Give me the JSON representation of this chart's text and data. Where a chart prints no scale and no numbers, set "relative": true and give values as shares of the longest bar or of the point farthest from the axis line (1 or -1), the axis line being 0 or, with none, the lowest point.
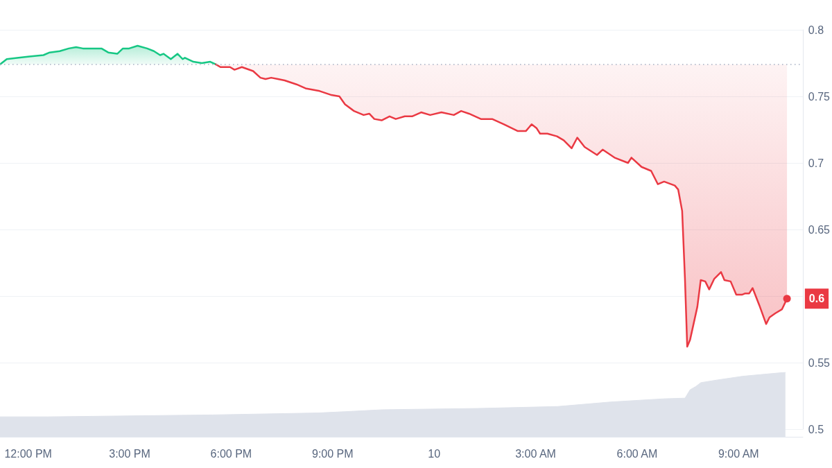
{
  "chart_data": [
    {
      "type": "area",
      "series": [
        {
          "color": "#16c784",
          "x": [
            "--01-09T11:10",
            "--01-09T11:22",
            "--01-09T11:43",
            "--01-09T12:02",
            "--01-09T12:27",
            "--01-09T12:38",
            "--01-09T12:56",
            "--01-09T13:12",
            "--01-09T13:25",
            "--01-09T13:37",
            "--01-09T13:53",
            "--01-09T14:10",
            "--01-09T14:22",
            "--01-09T14:38",
            "--01-09T14:48",
            "--01-09T14:59",
            "--01-09T15:14",
            "--01-09T15:31",
            "--01-09T15:43",
            "--01-09T15:54",
            "--01-09T16:00",
            "--01-09T16:13",
            "--01-09T16:25",
            "--01-09T16:34",
            "--01-09T16:38",
            "--01-09T16:53",
            "--01-09T17:08",
            "--01-09T17:23",
            "--01-09T17:33"
          ],
          "values": [
            0.774,
            0.778,
            0.779,
            0.78,
            0.781,
            0.783,
            0.784,
            0.786,
            0.787,
            0.786,
            0.786,
            0.786,
            0.783,
            0.782,
            0.786,
            0.786,
            0.788,
            0.786,
            0.784,
            0.781,
            0.782,
            0.778,
            0.782,
            0.778,
            0.779,
            0.776,
            0.775,
            0.776,
            0.774
          ]
        },
        {
          "type": "line",
          "color": "#ea3943",
          "x": [
            "--01-09T17:33",
            "--01-09T17:41",
            "--01-09T17:58",
            "--01-09T18:06",
            "--01-09T18:19",
            "--01-09T18:39",
            "--01-09T18:52",
            "--01-09T19:01",
            "--01-09T19:11",
            "--01-09T19:23",
            "--01-09T19:35",
            "--01-09T19:56",
            "--01-09T20:12",
            "--01-09T20:37",
            "--01-09T20:58",
            "--01-09T21:12",
            "--01-09T21:22",
            "--01-09T21:38",
            "--01-09T21:55",
            "--01-09T22:05",
            "--01-09T22:14",
            "--01-09T22:27",
            "--01-09T22:41",
            "--01-09T22:52",
            "--01-09T23:08",
            "--01-09T23:21",
            "--01-09T23:37",
            "--01-09T23:53",
            "--01-10T00:13",
            "--01-10T00:35",
            "--01-10T00:48",
            "--01-10T01:02",
            "--01-10T01:23",
            "--01-10T01:43",
            "--01-10T02:04",
            "--01-10T02:28",
            "--01-10T02:43",
            "--01-10T02:53",
            "--01-10T03:02",
            "--01-10T03:08",
            "--01-10T03:21",
            "--01-10T03:38",
            "--01-10T03:50",
            "--01-10T04:04",
            "--01-10T04:14",
            "--01-10T04:27",
            "--01-10T04:49",
            "--01-10T04:59",
            "--01-10T05:20",
            "--01-10T05:44",
            "--01-10T05:50",
            "--01-10T06:08",
            "--01-10T06:25",
            "--01-10T06:37",
            "--01-10T06:48",
            "--01-10T07:07",
            "--01-10T07:13",
            "--01-10T07:20",
            "--01-10T07:25",
            "--01-10T07:29",
            "--01-10T07:34",
            "--01-10T07:47",
            "--01-10T07:53",
            "--01-10T08:01",
            "--01-10T08:08",
            "--01-10T08:17",
            "--01-10T08:29",
            "--01-10T08:35",
            "--01-10T08:46",
            "--01-10T08:56",
            "--01-10T09:06",
            "--01-10T09:12",
            "--01-10T09:19",
            "--01-10T09:25",
            "--01-10T09:37",
            "--01-10T09:49",
            "--01-10T09:55",
            "--01-10T10:05",
            "--01-10T10:17",
            "--01-10T10:26"
          ],
          "values": [
            0.774,
            0.772,
            0.772,
            0.77,
            0.772,
            0.769,
            0.764,
            0.763,
            0.764,
            0.763,
            0.762,
            0.759,
            0.756,
            0.754,
            0.751,
            0.75,
            0.744,
            0.739,
            0.736,
            0.737,
            0.733,
            0.732,
            0.735,
            0.733,
            0.735,
            0.735,
            0.738,
            0.736,
            0.738,
            0.736,
            0.739,
            0.737,
            0.733,
            0.733,
            0.729,
            0.724,
            0.724,
            0.729,
            0.726,
            0.722,
            0.722,
            0.72,
            0.717,
            0.711,
            0.719,
            0.712,
            0.706,
            0.71,
            0.704,
            0.7,
            0.704,
            0.697,
            0.694,
            0.684,
            0.686,
            0.683,
            0.68,
            0.664,
            0.613,
            0.562,
            0.567,
            0.592,
            0.612,
            0.611,
            0.605,
            0.613,
            0.618,
            0.612,
            0.611,
            0.601,
            0.601,
            0.602,
            0.602,
            0.606,
            0.593,
            0.579,
            0.584,
            0.587,
            0.59,
            0.598
          ],
          "lower": [
            0.774,
            0.772,
            0.772,
            0.77,
            0.772,
            0.769,
            0.764,
            0.763,
            0.764,
            0.763,
            0.762,
            0.759,
            0.756,
            0.754,
            0.751,
            0.75,
            0.744,
            0.739,
            0.736,
            0.737,
            0.733,
            0.732,
            0.735,
            0.733,
            0.735,
            0.735,
            0.738,
            0.736,
            0.738,
            0.736,
            0.739,
            0.737,
            0.733,
            0.733,
            0.729,
            0.724,
            0.724,
            0.729,
            0.726,
            0.722,
            0.722,
            0.72,
            0.717,
            0.711,
            0.719,
            0.712,
            0.706,
            0.71,
            0.704,
            0.7,
            0.704,
            0.697,
            0.694,
            0.684,
            0.686,
            0.683,
            0.68,
            0.664,
            0.613,
            0.562,
            0.567,
            0.592,
            0.612,
            0.611,
            0.605,
            0.613,
            0.618,
            0.612,
            0.611,
            0.601,
            0.601,
            0.602,
            0.602,
            0.606,
            0.593,
            0.579,
            0.584,
            0.587,
            0.59,
            0.598
          ],
          "upper": [
            0.774,
            0.774,
            0.774,
            0.774,
            0.774,
            0.774,
            0.774,
            0.774,
            0.774,
            0.774,
            0.774,
            0.774,
            0.774,
            0.774,
            0.774,
            0.774,
            0.774,
            0.774,
            0.774,
            0.774,
            0.774,
            0.774,
            0.774,
            0.774,
            0.774,
            0.774,
            0.774,
            0.774,
            0.774,
            0.774,
            0.774,
            0.774,
            0.774,
            0.774,
            0.774,
            0.774,
            0.774,
            0.774,
            0.774,
            0.774,
            0.774,
            0.774,
            0.774,
            0.774,
            0.774,
            0.774,
            0.774,
            0.774,
            0.774,
            0.774,
            0.774,
            0.774,
            0.774,
            0.774,
            0.774,
            0.774,
            0.774,
            0.774,
            0.774,
            0.774,
            0.774,
            0.774,
            0.774,
            0.774,
            0.774,
            0.774,
            0.774,
            0.774,
            0.774,
            0.774,
            0.774,
            0.774,
            0.774,
            0.774,
            0.774,
            0.774,
            0.774,
            0.774,
            0.774,
            0.774
          ]
        }
      ],
      "xlim": [
        "--01-09T11:10",
        "--01-10T10:54"
      ],
      "ylim": [
        0.5,
        0.8
      ],
      "yticks": [
        0.5,
        0.55,
        {
          "value": 0.6,
          "label": null
        },
        0.65,
        0.7,
        0.75,
        0.8
      ],
      "grid": "y",
      "tick_labels": "y",
      "ref_lines": [
        {
          "axis": "y",
          "value": 0.774,
          "color": "#a6b0c3",
          "line_style": "dotted"
        }
      ],
      "annotations": [
        {
          "text": "0.6",
          "x": "--01-10T10:26",
          "y": 0.598
        }
      ]
    },
    {
      "type": "area",
      "relative": true,
      "color": "#dfe3eb",
      "x": [
        "--01-09T11:10",
        "--01-09T12:34",
        "--01-09T14:13",
        "--01-09T17:27",
        "--01-09T20:34",
        "--01-09T21:22",
        "--01-09T22:28",
        "--01-10T01:17",
        "--01-10T03:39",
        "--01-10T05:13",
        "--01-10T06:48",
        "--01-10T07:25",
        "--01-10T07:34",
        "--01-10T07:44",
        "--01-10T07:53",
        "--01-10T08:21",
        "--01-10T09:08",
        "--01-10T10:23"
      ],
      "values": [
        0.31,
        0.31,
        0.32,
        0.34,
        0.37,
        0.39,
        0.42,
        0.44,
        0.47,
        0.54,
        0.59,
        0.6,
        0.73,
        0.78,
        0.84,
        0.88,
        0.94,
        1
      ],
      "xlim": [
        "--01-09T11:10",
        "--01-10T10:54"
      ],
      "xticks": [
        {
          "value": "--01-09T12:00",
          "label": "12:00 PM"
        },
        {
          "value": "--01-09T15:00",
          "label": "3:00 PM"
        },
        {
          "value": "--01-09T18:00",
          "label": "6:00 PM"
        },
        {
          "value": "--01-09T21:00",
          "label": "9:00 PM"
        },
        {
          "value": "--01-10T00:00",
          "label": "10"
        },
        {
          "value": "--01-10T03:00",
          "label": "3:00 AM"
        },
        {
          "value": "--01-10T06:00",
          "label": "6:00 AM"
        },
        {
          "value": "--01-10T09:00",
          "label": "9:00 AM"
        }
      ],
      "tick_labels": "x"
    }
  ]
}
